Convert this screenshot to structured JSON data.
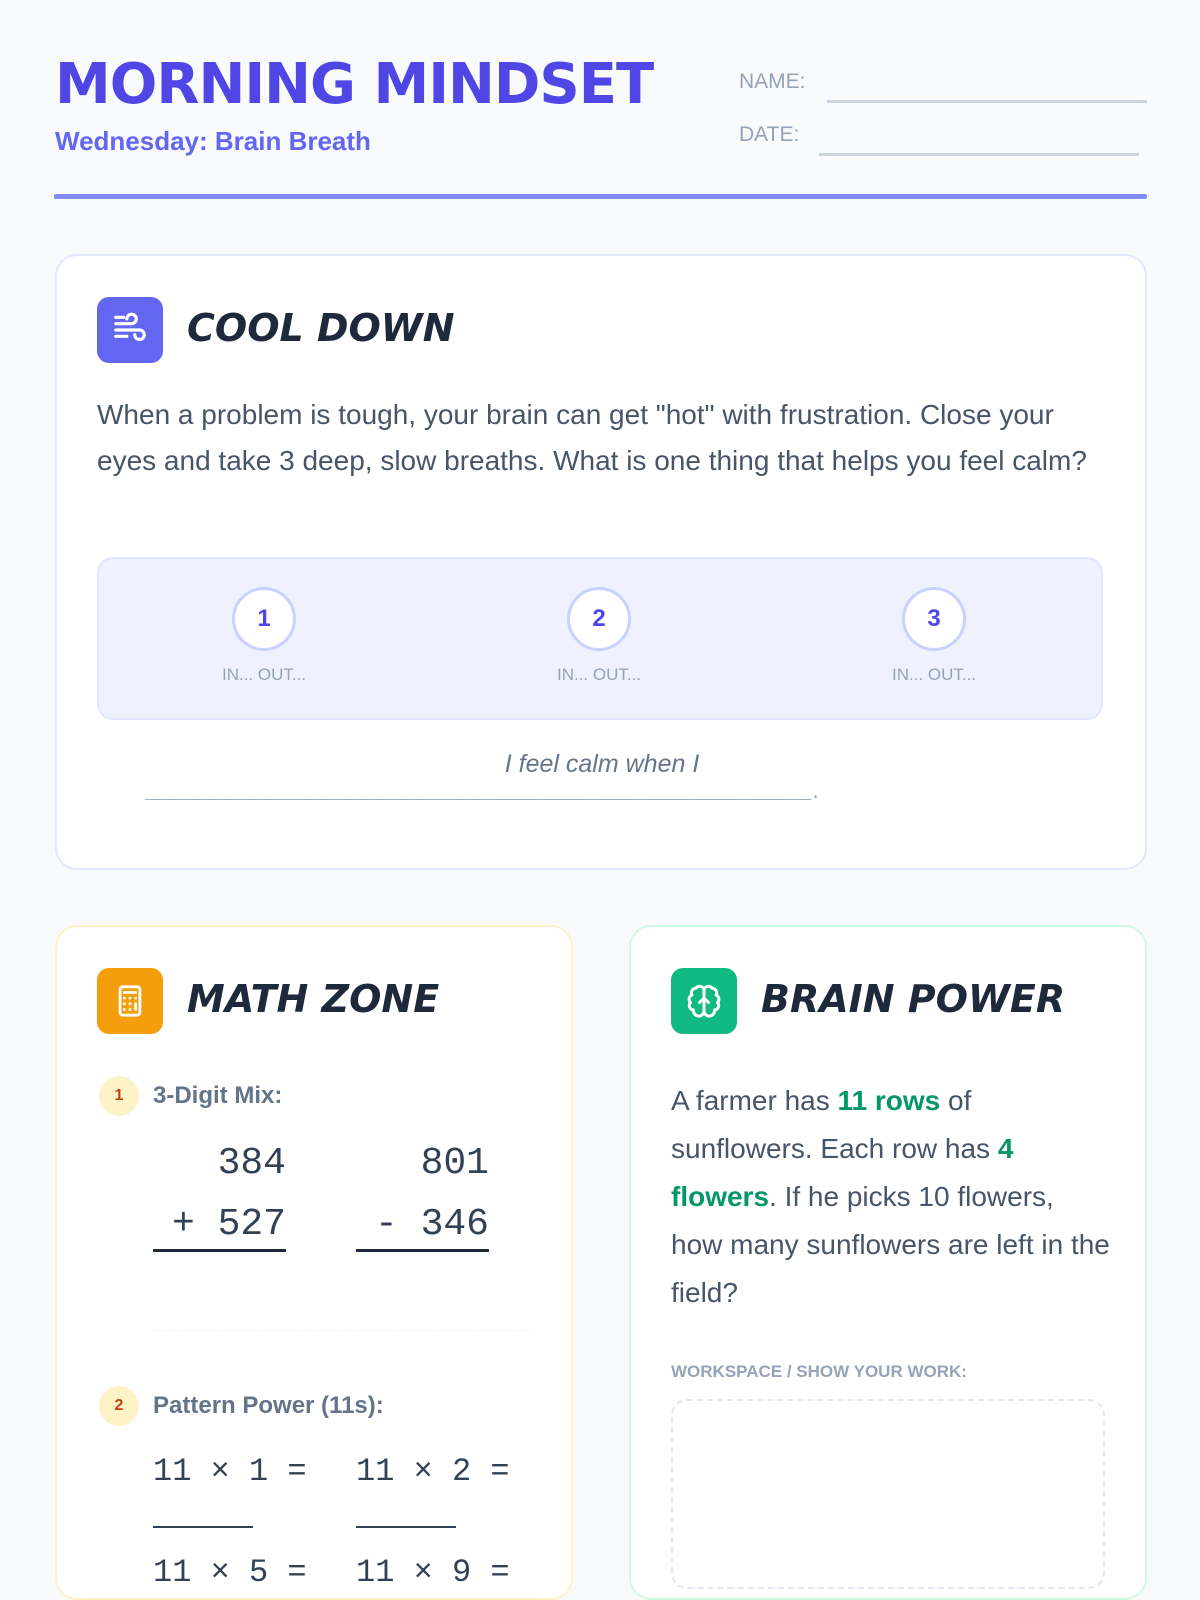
{
  "header": {
    "title": "MORNING MINDSET",
    "subtitle": "Wednesday: Brain Breath",
    "name_label": "NAME:",
    "date_label": "DATE:"
  },
  "colors": {
    "accent": "#4f46e5",
    "cool_down": "#6366f1",
    "math": "#f59e0b",
    "brain": "#10b981",
    "highlight": "#059669"
  },
  "cool_down": {
    "icon": "wind-icon",
    "title": "COOL DOWN",
    "prompt": "When a problem is tough, your brain can get \"hot\" with frustration. Close your eyes and take 3 deep, slow breaths. What is one thing that helps you feel calm?",
    "breaths": [
      {
        "num": "1",
        "label": "IN... OUT..."
      },
      {
        "num": "2",
        "label": "IN... OUT..."
      },
      {
        "num": "3",
        "label": "IN... OUT..."
      }
    ],
    "sentence": "I feel calm when I",
    "blank": "______________________________________________________________________."
  },
  "math": {
    "icon": "calculator-icon",
    "title": "MATH ZONE",
    "q1": {
      "num": "1",
      "label": "3-Digit Mix:",
      "problems": [
        {
          "top": "384",
          "bottom": "+ 527"
        },
        {
          "top": "801",
          "bottom": "- 346"
        }
      ]
    },
    "q2": {
      "num": "2",
      "label": "Pattern Power (11s):",
      "items": [
        "11 × 1 =",
        "11 × 2 =",
        "11 × 5 =",
        "11 × 9 ="
      ]
    }
  },
  "brain": {
    "icon": "brain-icon",
    "title": "BRAIN POWER",
    "story": {
      "p1": "A farmer has ",
      "h1": "11 rows",
      "p2": " of sunflowers. Each row has ",
      "h2": "4 flowers",
      "p3": ". If he picks 10 flowers, how many sunflowers are left in the field?"
    },
    "workspace_label": "WORKSPACE / SHOW YOUR WORK:"
  }
}
